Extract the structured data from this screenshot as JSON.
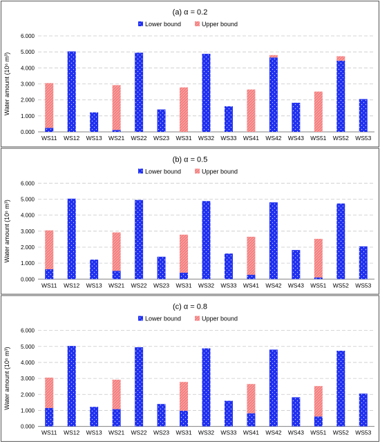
{
  "chart_data": [
    {
      "type": "bar",
      "stacked": true,
      "title": "(a) α = 0.2",
      "ylabel": "Water amount (10⁶ m³)",
      "xlabel": "",
      "ylim": [
        0,
        6
      ],
      "yticks": [
        "0.000",
        "1.000",
        "2.000",
        "3.000",
        "4.000",
        "5.000",
        "6.000"
      ],
      "grid": true,
      "legend": "top",
      "categories": [
        "WS11",
        "WS12",
        "WS13",
        "WS21",
        "WS22",
        "WS23",
        "WS31",
        "WS32",
        "WS33",
        "WS41",
        "WS42",
        "WS43",
        "WS51",
        "WS52",
        "WS53"
      ],
      "series": [
        {
          "name": "Lower bound",
          "color": "#1f2ff0",
          "values": [
            0.25,
            5.03,
            1.22,
            0.12,
            4.95,
            1.4,
            0.0,
            4.88,
            1.6,
            0.0,
            4.65,
            1.82,
            0.0,
            4.45,
            2.05
          ]
        },
        {
          "name": "Upper bound",
          "color": "#f28080",
          "values": [
            2.8,
            0.0,
            0.0,
            2.8,
            0.0,
            0.0,
            2.78,
            0.0,
            0.0,
            2.65,
            0.15,
            0.0,
            2.52,
            0.28,
            0.0
          ]
        }
      ]
    },
    {
      "type": "bar",
      "stacked": true,
      "title": "(b) α = 0.5",
      "ylabel": "Water amount (10⁶ m³)",
      "xlabel": "",
      "ylim": [
        0,
        6
      ],
      "yticks": [
        "0.000",
        "1.000",
        "2.000",
        "3.000",
        "4.000",
        "5.000",
        "6.000"
      ],
      "grid": true,
      "legend": "top",
      "categories": [
        "WS11",
        "WS12",
        "WS13",
        "WS21",
        "WS22",
        "WS23",
        "WS31",
        "WS32",
        "WS33",
        "WS41",
        "WS42",
        "WS43",
        "WS51",
        "WS52",
        "WS53"
      ],
      "series": [
        {
          "name": "Lower bound",
          "color": "#1f2ff0",
          "values": [
            0.62,
            5.03,
            1.22,
            0.52,
            4.95,
            1.4,
            0.4,
            4.88,
            1.6,
            0.27,
            4.8,
            1.82,
            0.1,
            4.73,
            2.05
          ]
        },
        {
          "name": "Upper bound",
          "color": "#f28080",
          "values": [
            2.43,
            0.0,
            0.0,
            2.4,
            0.0,
            0.0,
            2.38,
            0.0,
            0.0,
            2.38,
            0.0,
            0.0,
            2.42,
            0.0,
            0.0
          ]
        }
      ]
    },
    {
      "type": "bar",
      "stacked": true,
      "title": "(c) α = 0.8",
      "ylabel": "Water amount (10⁶ m³)",
      "xlabel": "",
      "ylim": [
        0,
        6
      ],
      "yticks": [
        "0.000",
        "1.000",
        "2.000",
        "3.000",
        "4.000",
        "5.000",
        "6.000"
      ],
      "grid": true,
      "legend": "top",
      "categories": [
        "WS11",
        "WS12",
        "WS13",
        "WS21",
        "WS22",
        "WS23",
        "WS31",
        "WS32",
        "WS33",
        "WS41",
        "WS42",
        "WS43",
        "WS51",
        "WS52",
        "WS53"
      ],
      "series": [
        {
          "name": "Lower bound",
          "color": "#1f2ff0",
          "values": [
            1.15,
            5.03,
            1.22,
            1.08,
            4.95,
            1.4,
            0.98,
            4.88,
            1.6,
            0.82,
            4.8,
            1.82,
            0.62,
            4.73,
            2.05
          ]
        },
        {
          "name": "Upper bound",
          "color": "#f28080",
          "values": [
            1.9,
            0.0,
            0.0,
            1.84,
            0.0,
            0.0,
            1.8,
            0.0,
            0.0,
            1.83,
            0.0,
            0.0,
            1.9,
            0.0,
            0.0
          ]
        }
      ]
    }
  ]
}
